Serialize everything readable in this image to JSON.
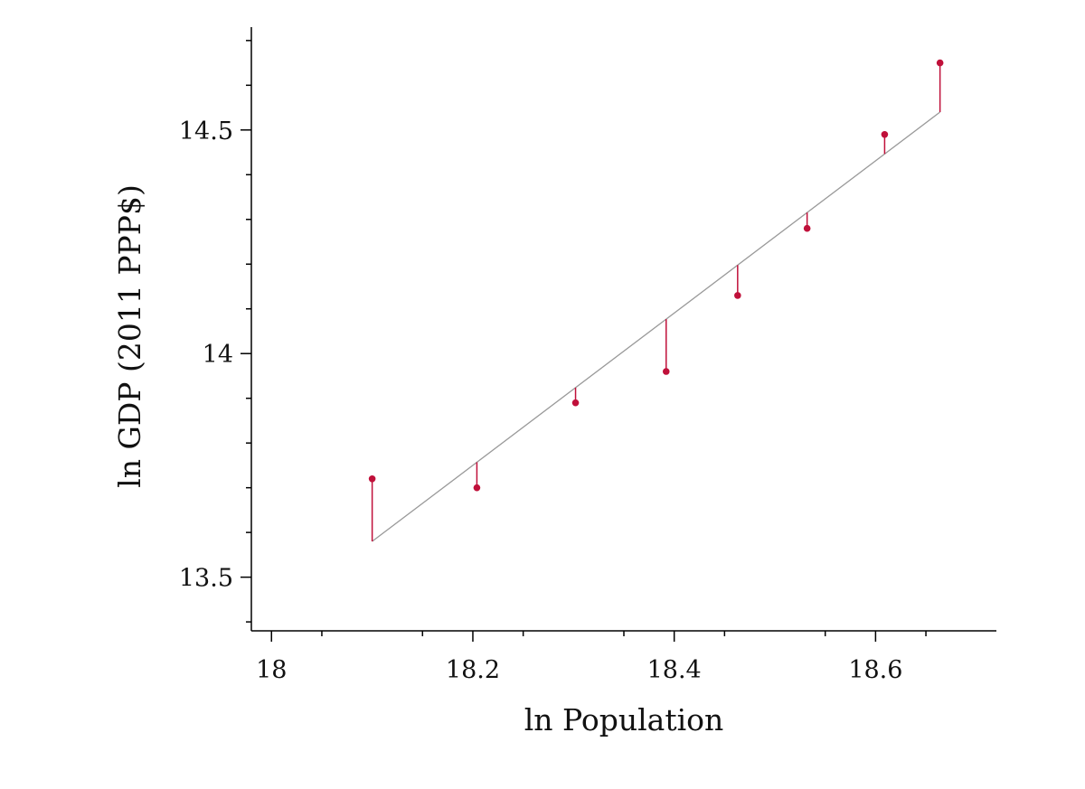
{
  "chart_data": {
    "type": "scatter",
    "xlabel": "ln Population",
    "ylabel": "ln GDP (2011 PPP$)",
    "xlim": [
      17.98,
      18.72
    ],
    "ylim": [
      13.38,
      14.73
    ],
    "xticks": [
      18,
      18.2,
      18.4,
      18.6
    ],
    "xtick_labels": [
      "18",
      "18.2",
      "18.4",
      "18.6"
    ],
    "yticks": [
      13.5,
      14,
      14.5
    ],
    "ytick_labels": [
      "13.5",
      "14",
      "14.5"
    ],
    "grid": false,
    "series": [
      {
        "points": [
          {
            "x": 18.1,
            "y": 13.72
          },
          {
            "x": 18.204,
            "y": 13.7
          },
          {
            "x": 18.302,
            "y": 13.89
          },
          {
            "x": 18.392,
            "y": 13.96
          },
          {
            "x": 18.463,
            "y": 14.13
          },
          {
            "x": 18.532,
            "y": 14.28
          },
          {
            "x": 18.609,
            "y": 14.49
          },
          {
            "x": 18.664,
            "y": 14.65
          }
        ]
      }
    ],
    "fit_line": {
      "x": [
        18.1,
        18.664
      ],
      "y": [
        13.58,
        14.54
      ]
    },
    "colors": {
      "points": "#c0103a",
      "residuals": "#c0103a",
      "fit": "#999999"
    }
  }
}
